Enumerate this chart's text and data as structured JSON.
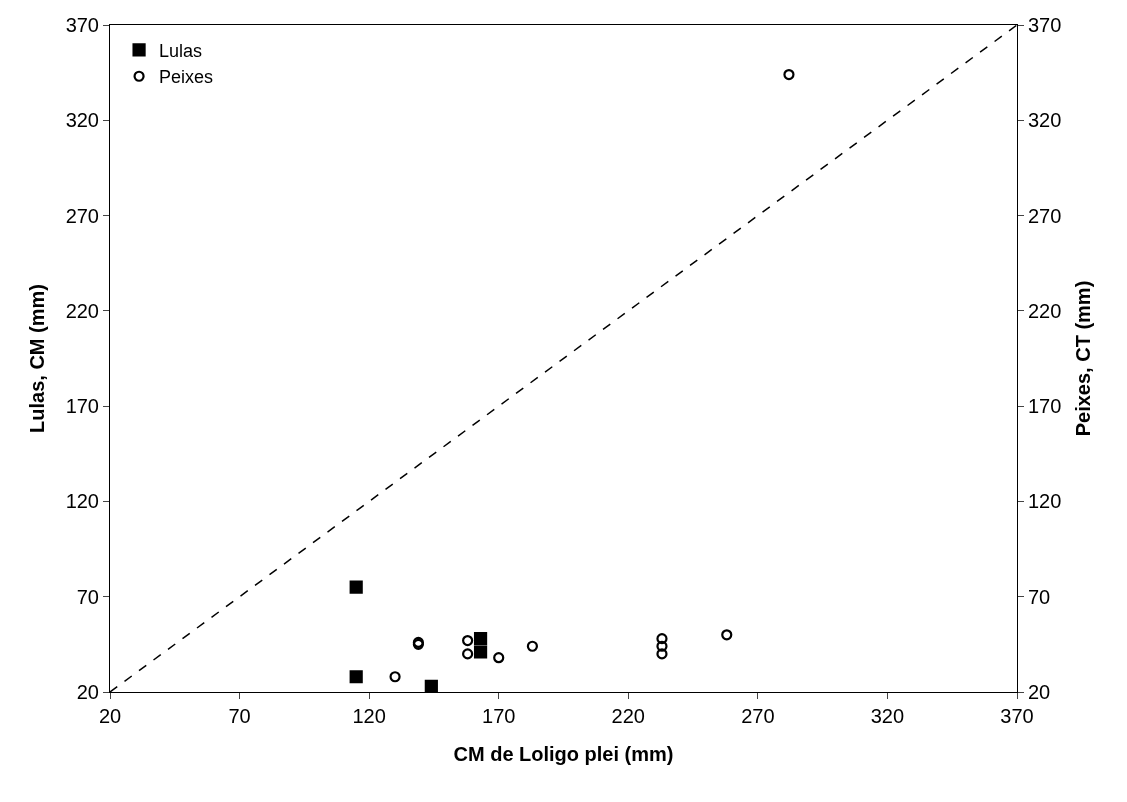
{
  "chart_data": {
    "type": "scatter",
    "xlabel": "CM de Loligo plei (mm)",
    "ylabel": "Lulas, CM (mm)",
    "y2label": "Peixes, CT (mm)",
    "xlim": [
      20,
      370
    ],
    "xticks": [
      20,
      70,
      120,
      170,
      220,
      270,
      320,
      370
    ],
    "ylim": [
      20,
      370
    ],
    "yticks": [
      20,
      70,
      120,
      170,
      220,
      270,
      320,
      370
    ],
    "y2lim": [
      20,
      370
    ],
    "y2ticks": [
      20,
      70,
      120,
      170,
      220,
      270,
      320,
      370
    ],
    "grid": false,
    "legend": "top left",
    "series": [
      {
        "name": "Lulas",
        "color": "#000000",
        "marker": "square",
        "x": [
          115,
          115,
          144,
          163,
          163
        ],
        "values": [
          75,
          28,
          23,
          48,
          41
        ]
      },
      {
        "name": "Peixes",
        "color": "#000000",
        "marker": "circle",
        "axis": "y2",
        "x": [
          130,
          139,
          139,
          158,
          158,
          170,
          183,
          233,
          233,
          233,
          258,
          282
        ],
        "values": [
          28,
          46,
          45,
          47,
          40,
          38,
          44,
          48,
          44,
          40,
          50,
          344
        ]
      },
      {
        "type": "line",
        "color": "#000000",
        "marker": "none",
        "line_style": "dashed",
        "x": [
          20,
          370
        ],
        "values": [
          20,
          370
        ]
      }
    ]
  }
}
